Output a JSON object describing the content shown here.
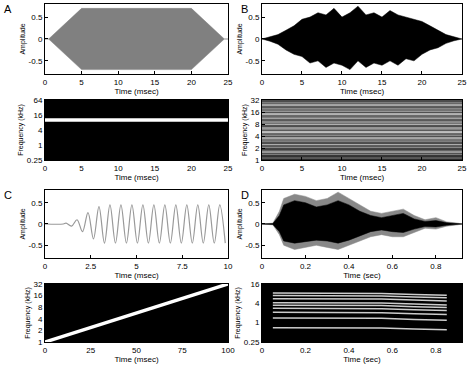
{
  "chart_data": [
    {
      "type": "area",
      "title": "A",
      "x_label": "Time (msec)",
      "y_label": "Amplitude",
      "xlim": [
        0,
        25
      ],
      "xticks": [
        0,
        5,
        10,
        15,
        20,
        25
      ],
      "ylim": [
        -0.8,
        0.8
      ],
      "yticks": [
        -0.5,
        0,
        0.5
      ],
      "x": [
        0,
        0.5,
        5,
        20,
        24.5,
        25
      ],
      "series": [
        {
          "color": "#808080",
          "upper": [
            0,
            0,
            0.7,
            0.7,
            0,
            0
          ],
          "lower": [
            0,
            0,
            -0.7,
            -0.7,
            0,
            0
          ]
        }
      ]
    },
    {
      "type": "spectrogram",
      "x_label": "Time (msec)",
      "y_label": "Frequency (kHz)",
      "log": "y",
      "xlim": [
        0,
        25
      ],
      "xticks": [
        0,
        5,
        10,
        15,
        20,
        25
      ],
      "ylim": [
        0.25,
        64
      ],
      "yticks": [
        0.25,
        1,
        4,
        16,
        64
      ],
      "color": "#ffffff",
      "x": [
        0,
        25
      ],
      "series": [
        {
          "values": [
            10,
            10
          ]
        }
      ]
    },
    {
      "type": "area",
      "title": "B",
      "x_label": "Time (msec)",
      "y_label": "Amplitude",
      "xlim": [
        0,
        25
      ],
      "xticks": [
        0,
        5,
        10,
        15,
        20,
        25
      ],
      "ylim": [
        -0.8,
        0.8
      ],
      "yticks": [
        -0.5,
        0,
        0.5
      ],
      "x": [
        0,
        1,
        2,
        3,
        4,
        5,
        6,
        7,
        8,
        9,
        10,
        11,
        12,
        13,
        14,
        15,
        16,
        17,
        18,
        19,
        20,
        21,
        22,
        23,
        24,
        25
      ],
      "series": [
        {
          "color": "#000000",
          "upper": [
            0,
            0.05,
            0.1,
            0.2,
            0.3,
            0.45,
            0.5,
            0.6,
            0.55,
            0.7,
            0.5,
            0.6,
            0.75,
            0.55,
            0.6,
            0.5,
            0.65,
            0.55,
            0.5,
            0.45,
            0.4,
            0.3,
            0.2,
            0.1,
            0.05,
            0
          ],
          "lower": [
            0,
            -0.05,
            -0.12,
            -0.25,
            -0.35,
            -0.4,
            -0.55,
            -0.5,
            -0.65,
            -0.55,
            -0.6,
            -0.7,
            -0.5,
            -0.65,
            -0.55,
            -0.6,
            -0.5,
            -0.6,
            -0.45,
            -0.5,
            -0.35,
            -0.25,
            -0.2,
            -0.1,
            -0.04,
            0
          ]
        }
      ]
    },
    {
      "type": "heatmap",
      "x_label": "Time (msec)",
      "y_label": "Frequency (kHz)",
      "log": "y",
      "xlim": [
        0,
        25
      ],
      "xticks": [
        0,
        5,
        10,
        15,
        20,
        25
      ],
      "ylim": [
        1,
        32
      ],
      "yticks": [
        1,
        2,
        4,
        8,
        16,
        32
      ],
      "zlim": [
        0,
        1
      ],
      "x_edges": [
        0,
        25
      ],
      "y_edges": [
        1,
        1.09,
        1.19,
        1.3,
        1.41,
        1.54,
        1.68,
        1.83,
        2,
        2.18,
        2.38,
        2.59,
        2.83,
        3.08,
        3.36,
        3.67,
        4,
        4.36,
        4.76,
        5.19,
        5.66,
        6.17,
        6.73,
        7.34,
        8,
        8.72,
        9.51,
        10.4,
        11.3,
        12.3,
        13.5,
        14.7,
        16,
        17.4,
        19,
        20.7,
        22.6,
        24.7,
        26.9,
        29.3,
        32
      ],
      "cells": [
        [
          0.15
        ],
        [
          0.35
        ],
        [
          0.2
        ],
        [
          0.5
        ],
        [
          0.3
        ],
        [
          0.6
        ],
        [
          0.4
        ],
        [
          0.25
        ],
        [
          0.55
        ],
        [
          0.35
        ],
        [
          0.7
        ],
        [
          0.3
        ],
        [
          0.5
        ],
        [
          0.45
        ],
        [
          0.65
        ],
        [
          0.3
        ],
        [
          0.55
        ],
        [
          0.4
        ],
        [
          0.75
        ],
        [
          0.35
        ],
        [
          0.5
        ],
        [
          0.6
        ],
        [
          0.3
        ],
        [
          0.7
        ],
        [
          0.45
        ],
        [
          0.55
        ],
        [
          0.35
        ],
        [
          0.65
        ],
        [
          0.5
        ],
        [
          0.4
        ],
        [
          0.7
        ],
        [
          0.3
        ],
        [
          0.6
        ],
        [
          0.45
        ],
        [
          0.55
        ],
        [
          0.35
        ],
        [
          0.65
        ],
        [
          0.4
        ],
        [
          0.5
        ],
        [
          0.3
        ]
      ]
    },
    {
      "type": "line",
      "title": "C",
      "x_label": "Time (msec)",
      "y_label": "Amplitude",
      "xlim": [
        0,
        10
      ],
      "xticks": [
        0,
        2.5,
        5,
        7.5,
        10
      ],
      "ylim": [
        -0.8,
        0.8
      ],
      "yticks": [
        -0.5,
        0,
        0.5
      ],
      "color": "#999999",
      "line_style": "smooth",
      "x": [
        0,
        1,
        1.15,
        1.45,
        1.75,
        2.05,
        2.35,
        2.65,
        2.95,
        3.25,
        3.55,
        3.85,
        4.15,
        4.45,
        4.75,
        5.05,
        5.35,
        5.65,
        5.95,
        6.25,
        6.55,
        6.85,
        7.15,
        7.45,
        7.75,
        8.05,
        8.35,
        8.65,
        8.95,
        9.25,
        9.55,
        9.85
      ],
      "values": [
        0,
        0,
        0.02,
        -0.05,
        0.1,
        -0.18,
        0.27,
        -0.35,
        0.41,
        -0.45,
        0.45,
        -0.45,
        0.45,
        -0.45,
        0.45,
        -0.45,
        0.45,
        -0.45,
        0.45,
        -0.45,
        0.45,
        -0.45,
        0.45,
        -0.45,
        0.45,
        -0.45,
        0.45,
        -0.45,
        0.45,
        -0.45,
        0.45,
        -0.45
      ]
    },
    {
      "type": "spectrogram",
      "x_label": "Time (msec)",
      "y_label": "Frequency (kHz)",
      "log": "y",
      "xlim": [
        0,
        100
      ],
      "xticks": [
        0,
        25,
        50,
        75,
        100
      ],
      "ylim": [
        1,
        32
      ],
      "yticks": [
        1,
        2,
        4,
        8,
        16,
        32
      ],
      "color": "#ffffff",
      "x": [
        0,
        100
      ],
      "series": [
        {
          "values": [
            1,
            32
          ]
        }
      ]
    },
    {
      "type": "area",
      "title": "D",
      "x_label": "Time (sec)",
      "y_label": "Amplitude",
      "xlim": [
        0,
        0.92
      ],
      "xticks": [
        0,
        0.2,
        0.4,
        0.6,
        0.8
      ],
      "ylim": [
        -0.8,
        0.8
      ],
      "yticks": [
        -0.5,
        0,
        0.5
      ],
      "x": [
        0,
        0.05,
        0.08,
        0.1,
        0.15,
        0.2,
        0.25,
        0.3,
        0.35,
        0.4,
        0.45,
        0.5,
        0.55,
        0.6,
        0.65,
        0.7,
        0.75,
        0.8,
        0.85,
        0.9,
        0.92
      ],
      "series": [
        {
          "color": "#888888",
          "upper": [
            0,
            0.02,
            0.3,
            0.6,
            0.7,
            0.65,
            0.55,
            0.6,
            0.75,
            0.6,
            0.45,
            0.3,
            0.25,
            0.3,
            0.35,
            0.2,
            0.1,
            0.15,
            0.05,
            0.02,
            0
          ],
          "lower": [
            0,
            -0.02,
            -0.25,
            -0.5,
            -0.6,
            -0.55,
            -0.5,
            -0.55,
            -0.6,
            -0.5,
            -0.4,
            -0.3,
            -0.25,
            -0.3,
            -0.3,
            -0.2,
            -0.1,
            -0.12,
            -0.05,
            -0.02,
            0
          ]
        },
        {
          "color": "#000000",
          "upper": [
            0,
            0.01,
            0.2,
            0.45,
            0.55,
            0.5,
            0.4,
            0.45,
            0.55,
            0.45,
            0.3,
            0.2,
            0.15,
            0.2,
            0.25,
            0.12,
            0.06,
            0.08,
            0.03,
            0.01,
            0
          ],
          "lower": [
            0,
            -0.01,
            -0.18,
            -0.4,
            -0.45,
            -0.42,
            -0.38,
            -0.4,
            -0.45,
            -0.38,
            -0.28,
            -0.18,
            -0.14,
            -0.18,
            -0.2,
            -0.12,
            -0.06,
            -0.07,
            -0.03,
            -0.01,
            0
          ]
        }
      ]
    },
    {
      "type": "spectrogram",
      "x_label": "Time (sec)",
      "y_label": "Frequency (kHz)",
      "log": "y",
      "xlim": [
        0,
        0.92
      ],
      "xticks": [
        0,
        0.2,
        0.4,
        0.6,
        0.8
      ],
      "ylim": [
        0.25,
        16
      ],
      "yticks": [
        0.25,
        1,
        4,
        16
      ],
      "color": "#cccccc",
      "x": [
        0.05,
        0.3,
        0.55,
        0.7,
        0.85
      ],
      "series": [
        {
          "values": [
            0.7,
            0.7,
            0.68,
            0.63,
            0.6
          ]
        },
        {
          "values": [
            1.4,
            1.4,
            1.36,
            1.26,
            1.19
          ]
        },
        {
          "values": [
            2.1,
            2.1,
            2.04,
            1.89,
            1.79
          ]
        },
        {
          "values": [
            2.8,
            2.8,
            2.72,
            2.52,
            2.38
          ]
        },
        {
          "values": [
            3.5,
            3.5,
            3.4,
            3.15,
            2.98
          ]
        },
        {
          "values": [
            4.2,
            4.2,
            4.07,
            3.78,
            3.57
          ]
        },
        {
          "values": [
            5.6,
            5.6,
            5.43,
            5.04,
            4.76
          ]
        },
        {
          "values": [
            7,
            7,
            6.79,
            6.3,
            5.95
          ]
        },
        {
          "values": [
            8.4,
            8.4,
            8.15,
            7.56,
            7.14
          ]
        }
      ]
    }
  ]
}
